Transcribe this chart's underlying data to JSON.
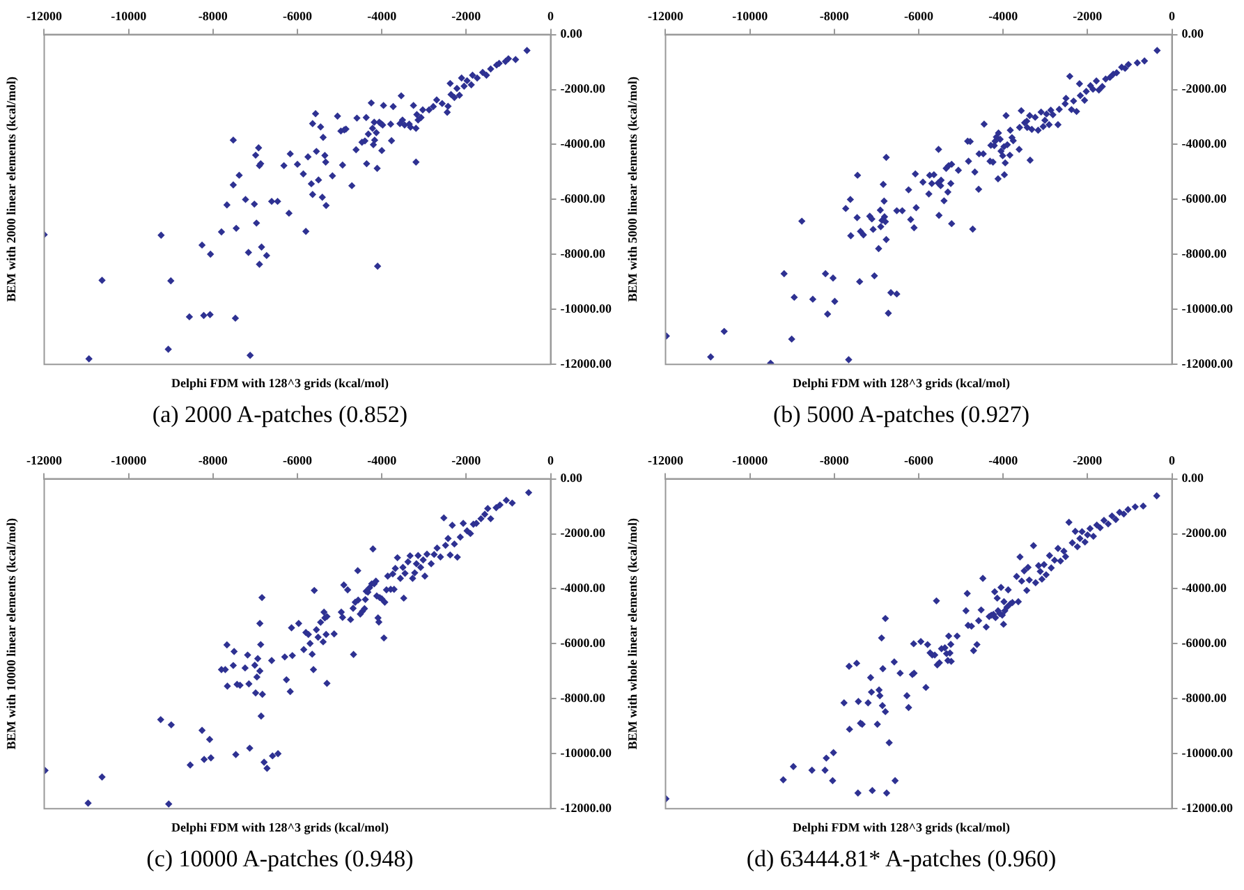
{
  "chart_data": [
    {
      "type": "scatter",
      "title": "(a) 2000 A-patches (0.852)",
      "xlabel": "Delphi FDM with 128^3 grids (kcal/mol)",
      "ylabel": "BEM with 2000 linear elements (kcal/mol)",
      "color": "#2e3192",
      "marker": "diamond",
      "xlim": [
        -12000,
        0
      ],
      "ylim": [
        -12000,
        0
      ],
      "xticks": [
        -12000,
        -10000,
        -8000,
        -6000,
        -4000,
        -2000,
        0
      ],
      "yticks": [
        {
          "value": 0,
          "label": "0.00"
        },
        {
          "value": -2000,
          "label": "-2000.00"
        },
        {
          "value": -4000,
          "label": "-4000.00"
        },
        {
          "value": -6000,
          "label": "-6000.00"
        },
        {
          "value": -8000,
          "label": "-8000.00"
        },
        {
          "value": -10000,
          "label": "-10000.00"
        },
        {
          "value": -12000,
          "label": "-12000.00"
        }
      ],
      "x": [
        -12000,
        -10940,
        -10630,
        -9230,
        -9060,
        -9000,
        -8560,
        -8260,
        -8220,
        -8060,
        -8070,
        -7800,
        -7670,
        -7520,
        -7520,
        -7470,
        -7450,
        -7380,
        -7230,
        -7160,
        -7120,
        -7020,
        -6990,
        -6970,
        -6920,
        -6900,
        -6900,
        -6870,
        -6850,
        -6730,
        -6610,
        -6470,
        -6320,
        -6200,
        -6170,
        -6000,
        -5860,
        -5800,
        -5750,
        -5670,
        -5640,
        -5640,
        -5570,
        -5550,
        -5500,
        -5450,
        -5410,
        -5390,
        -5350,
        -5330,
        -5320,
        -5170,
        -5050,
        -4970,
        -4930,
        -4890,
        -4850,
        -4710,
        -4590,
        -4610,
        -4470,
        -4400,
        -4370,
        -4360,
        -4320,
        -4250,
        -4220,
        -4200,
        -4180,
        -4170,
        -4130,
        -4110,
        -4100,
        -4060,
        -4020,
        -4000,
        -3980,
        -3960,
        -3790,
        -3770,
        -3730,
        -3570,
        -3540,
        -3510,
        -3460,
        -3350,
        -3320,
        -3250,
        -3190,
        -3190,
        -3170,
        -3140,
        -3070,
        -3030,
        -2880,
        -2780,
        -2700,
        -2570,
        -2450,
        -2430,
        -2380,
        -2360,
        -2280,
        -2220,
        -2160,
        -2110,
        -2050,
        -1980,
        -1880,
        -1850,
        -1740,
        -1610,
        -1520,
        -1420,
        -1280,
        -1220,
        -1070,
        -1000,
        -830,
        -560
      ],
      "values": [
        -7280,
        -11800,
        -8940,
        -7300,
        -11450,
        -8960,
        -10270,
        -7660,
        -10220,
        -7990,
        -10190,
        -7180,
        -6200,
        -3840,
        -5470,
        -10320,
        -7050,
        -5120,
        -6000,
        -7930,
        -11670,
        -6170,
        -4390,
        -6860,
        -4120,
        -8360,
        -4770,
        -4700,
        -7730,
        -8040,
        -6070,
        -6070,
        -4770,
        -6500,
        -4340,
        -4720,
        -5070,
        -7160,
        -4450,
        -5430,
        -3240,
        -5820,
        -2880,
        -4250,
        -5290,
        -3360,
        -5920,
        -3740,
        -4400,
        -4640,
        -6220,
        -5140,
        -2970,
        -3510,
        -4750,
        -3470,
        -3440,
        -5500,
        -3040,
        -4190,
        -3920,
        -3870,
        -3020,
        -4700,
        -3620,
        -2490,
        -3410,
        -4010,
        -3190,
        -3840,
        -3570,
        -4870,
        -8430,
        -3190,
        -3240,
        -4220,
        -3290,
        -2580,
        -3260,
        -3860,
        -2620,
        -3240,
        -2230,
        -3110,
        -3290,
        -3260,
        -3370,
        -2580,
        -4640,
        -3410,
        -2910,
        -3110,
        -3020,
        -2740,
        -2740,
        -2620,
        -2380,
        -2510,
        -2830,
        -2610,
        -1780,
        -2180,
        -2290,
        -1960,
        -2210,
        -1580,
        -1880,
        -1680,
        -1830,
        -1480,
        -1580,
        -1380,
        -1480,
        -1250,
        -1110,
        -1050,
        -980,
        -880,
        -910,
        -580
      ]
    },
    {
      "type": "scatter",
      "title": "(b) 5000 A-patches (0.927)",
      "xlabel": "Delphi FDM with 128^3 grids (kcal/mol)",
      "ylabel": "BEM with 5000 linear elements (kcal/mol)",
      "color": "#2e3192",
      "marker": "diamond",
      "xlim": [
        -12000,
        0
      ],
      "ylim": [
        -12000,
        0
      ],
      "xticks": [
        -12000,
        -10000,
        -8000,
        -6000,
        -4000,
        -2000,
        0
      ],
      "yticks": [
        {
          "value": 0,
          "label": "0.00"
        },
        {
          "value": -2000,
          "label": "-2000.00"
        },
        {
          "value": -4000,
          "label": "-4000.00"
        },
        {
          "value": -6000,
          "label": "-6000.00"
        },
        {
          "value": -8000,
          "label": "-8000.00"
        },
        {
          "value": -10000,
          "label": "-10000.00"
        },
        {
          "value": -12000,
          "label": "-12000.00"
        }
      ],
      "x": [
        -11980,
        -10930,
        -10610,
        -9510,
        -9190,
        -9010,
        -8950,
        -8770,
        -8510,
        -8210,
        -8160,
        -8030,
        -7990,
        -7730,
        -7660,
        -7620,
        -7610,
        -7460,
        -7450,
        -7400,
        -7380,
        -7310,
        -7160,
        -7110,
        -7080,
        -7050,
        -6950,
        -6910,
        -6900,
        -6870,
        -6840,
        -6820,
        -6810,
        -6790,
        -6770,
        -6770,
        -6720,
        -6660,
        -6520,
        -6520,
        -6390,
        -6240,
        -6190,
        -6110,
        -6080,
        -6060,
        -5900,
        -5760,
        -5740,
        -5690,
        -5640,
        -5540,
        -5530,
        -5520,
        -5480,
        -5470,
        -5400,
        -5350,
        -5310,
        -5290,
        -5240,
        -5220,
        -5220,
        -5060,
        -4840,
        -4820,
        -4780,
        -4720,
        -4670,
        -4580,
        -4570,
        -4470,
        -4450,
        -4310,
        -4290,
        -4240,
        -4210,
        -4190,
        -4160,
        -4120,
        -4110,
        -4070,
        -4050,
        -4010,
        -3980,
        -3970,
        -3950,
        -3930,
        -3900,
        -3840,
        -3830,
        -3790,
        -3760,
        -3620,
        -3610,
        -3570,
        -3490,
        -3440,
        -3430,
        -3370,
        -3360,
        -3320,
        -3240,
        -3170,
        -3100,
        -3050,
        -3010,
        -2970,
        -2910,
        -2870,
        -2820,
        -2700,
        -2670,
        -2530,
        -2510,
        -2420,
        -2380,
        -2330,
        -2260,
        -2190,
        -2170,
        -2070,
        -2030,
        -1930,
        -1870,
        -1790,
        -1730,
        -1650,
        -1570,
        -1470,
        -1390,
        -1310,
        -1190,
        -1110,
        -1030,
        -820,
        -650,
        -350
      ],
      "values": [
        -10970,
        -11730,
        -10800,
        -11960,
        -8700,
        -11080,
        -9560,
        -6790,
        -9630,
        -8700,
        -10170,
        -8860,
        -9710,
        -6330,
        -11830,
        -6000,
        -7320,
        -6660,
        -5120,
        -8990,
        -7160,
        -7290,
        -6610,
        -6710,
        -7090,
        -8780,
        -7790,
        -6390,
        -6990,
        -6760,
        -5450,
        -6060,
        -6630,
        -6810,
        -7460,
        -4470,
        -10140,
        -9390,
        -9440,
        -6410,
        -6410,
        -5650,
        -6730,
        -7030,
        -5070,
        -6300,
        -5370,
        -5800,
        -5120,
        -5420,
        -5100,
        -5400,
        -4180,
        -6580,
        -5500,
        -5300,
        -6050,
        -4870,
        -5730,
        -4770,
        -5420,
        -4720,
        -6880,
        -4940,
        -3880,
        -4610,
        -3890,
        -7080,
        -5000,
        -5630,
        -4340,
        -4340,
        -3260,
        -4610,
        -4030,
        -4640,
        -4040,
        -3880,
        -3730,
        -5250,
        -3580,
        -3810,
        -4240,
        -4410,
        -4080,
        -5100,
        -4670,
        -2950,
        -4010,
        -4390,
        -3480,
        -3750,
        -3860,
        -4180,
        -3380,
        -2770,
        -3210,
        -3150,
        -3380,
        -2950,
        -4570,
        -3450,
        -3010,
        -3480,
        -2820,
        -3350,
        -3120,
        -2890,
        -3280,
        -2750,
        -2920,
        -3280,
        -2720,
        -2520,
        -2320,
        -1520,
        -2730,
        -2420,
        -2800,
        -1790,
        -2220,
        -2390,
        -2070,
        -1860,
        -1990,
        -1690,
        -2020,
        -1890,
        -1620,
        -1560,
        -1440,
        -1390,
        -1190,
        -1230,
        -1090,
        -1030,
        -960,
        -580
      ]
    },
    {
      "type": "scatter",
      "title": "(c) 10000 A-patches (0.948)",
      "xlabel": "Delphi FDM with 128^3 grids (kcal/mol)",
      "ylabel": "BEM with 10000 linear elements (kcal/mol)",
      "color": "#2e3192",
      "marker": "diamond",
      "xlim": [
        -12000,
        0
      ],
      "ylim": [
        -12000,
        0
      ],
      "xticks": [
        -12000,
        -10000,
        -8000,
        -6000,
        -4000,
        -2000,
        0
      ],
      "yticks": [
        {
          "value": 0,
          "label": "0.00"
        },
        {
          "value": -2000,
          "label": "-2000.00"
        },
        {
          "value": -4000,
          "label": "-4000.00"
        },
        {
          "value": -6000,
          "label": "-6000.00"
        },
        {
          "value": -8000,
          "label": "-8000.00"
        },
        {
          "value": -10000,
          "label": "-10000.00"
        },
        {
          "value": -12000,
          "label": "-12000.00"
        }
      ],
      "x": [
        -11980,
        -10960,
        -10630,
        -9240,
        -9050,
        -8990,
        -8540,
        -8260,
        -8210,
        -8080,
        -8050,
        -7800,
        -7710,
        -7670,
        -7660,
        -7520,
        -7500,
        -7460,
        -7430,
        -7360,
        -7240,
        -7180,
        -7150,
        -7130,
        -7010,
        -6990,
        -6960,
        -6940,
        -6890,
        -6890,
        -6870,
        -6860,
        -6840,
        -6830,
        -6790,
        -6720,
        -6610,
        -6590,
        -6460,
        -6300,
        -6260,
        -6170,
        -6140,
        -6120,
        -5970,
        -5850,
        -5800,
        -5740,
        -5700,
        -5650,
        -5620,
        -5600,
        -5550,
        -5510,
        -5450,
        -5390,
        -5370,
        -5350,
        -5320,
        -5300,
        -5300,
        -5130,
        -4960,
        -4930,
        -4900,
        -4810,
        -4740,
        -4680,
        -4670,
        -4630,
        -4570,
        -4560,
        -4510,
        -4460,
        -4410,
        -4390,
        -4370,
        -4330,
        -4290,
        -4240,
        -4210,
        -4180,
        -4140,
        -4120,
        -4090,
        -4070,
        -4050,
        -4000,
        -3950,
        -3930,
        -3890,
        -3860,
        -3790,
        -3740,
        -3710,
        -3680,
        -3630,
        -3560,
        -3500,
        -3480,
        -3450,
        -3380,
        -3330,
        -3270,
        -3220,
        -3180,
        -3140,
        -3080,
        -3020,
        -2980,
        -2930,
        -2830,
        -2760,
        -2690,
        -2610,
        -2530,
        -2490,
        -2430,
        -2380,
        -2330,
        -2280,
        -2210,
        -2140,
        -2070,
        -1980,
        -1900,
        -1830,
        -1760,
        -1650,
        -1560,
        -1490,
        -1420,
        -1290,
        -1200,
        -1050,
        -910,
        -520
      ],
      "values": [
        -10610,
        -11800,
        -10850,
        -8760,
        -11830,
        -8950,
        -10410,
        -9150,
        -10210,
        -9480,
        -10150,
        -6940,
        -6940,
        -6040,
        -7540,
        -6790,
        -6280,
        -10030,
        -7480,
        -7510,
        -6880,
        -6410,
        -7460,
        -9800,
        -6780,
        -7790,
        -7210,
        -6540,
        -6990,
        -5260,
        -6030,
        -8630,
        -4320,
        -7840,
        -10310,
        -10530,
        -6610,
        -10080,
        -10000,
        -6480,
        -7310,
        -7740,
        -5420,
        -6430,
        -5260,
        -6210,
        -5590,
        -5660,
        -5990,
        -6380,
        -6940,
        -4060,
        -5490,
        -5760,
        -5220,
        -5930,
        -4850,
        -5060,
        -5660,
        -7440,
        -5010,
        -5640,
        -4850,
        -5040,
        -3860,
        -4040,
        -5120,
        -4710,
        -6390,
        -4490,
        -3340,
        -4410,
        -4920,
        -4820,
        -4720,
        -4390,
        -4090,
        -4120,
        -3960,
        -3820,
        -2550,
        -3820,
        -3720,
        -4260,
        -5060,
        -5210,
        -4320,
        -4370,
        -5790,
        -4490,
        -4040,
        -3540,
        -4020,
        -3460,
        -4020,
        -3260,
        -2870,
        -3620,
        -3220,
        -4340,
        -3440,
        -3020,
        -2800,
        -3620,
        -3420,
        -3090,
        -2790,
        -3220,
        -2950,
        -3540,
        -2740,
        -3090,
        -2750,
        -2520,
        -2840,
        -1420,
        -2420,
        -2170,
        -2770,
        -1690,
        -2370,
        -2850,
        -2120,
        -1620,
        -1890,
        -1990,
        -1650,
        -1620,
        -1450,
        -1290,
        -1080,
        -1450,
        -1050,
        -950,
        -780,
        -880,
        -500
      ]
    },
    {
      "type": "scatter",
      "title": "(d) 63444.81* A-patches (0.960)",
      "xlabel": "Delphi FDM with 128^3 grids (kcal/mol)",
      "ylabel": "BEM with whole linear elements (kcal/mol)",
      "color": "#2e3192",
      "marker": "diamond",
      "xlim": [
        -12000,
        0
      ],
      "ylim": [
        -12000,
        0
      ],
      "xticks": [
        -12000,
        -10000,
        -8000,
        -6000,
        -4000,
        -2000,
        0
      ],
      "yticks": [
        {
          "value": 0,
          "label": "0.00"
        },
        {
          "value": -2000,
          "label": "-2000.00"
        },
        {
          "value": -4000,
          "label": "-4000.00"
        },
        {
          "value": -6000,
          "label": "-6000.00"
        },
        {
          "value": -8000,
          "label": "-8000.00"
        },
        {
          "value": -10000,
          "label": "-10000.00"
        },
        {
          "value": -12000,
          "label": "-12000.00"
        }
      ],
      "x": [
        -11990,
        -9210,
        -8970,
        -8530,
        -8220,
        -8190,
        -8040,
        -8020,
        -7770,
        -7650,
        -7640,
        -7470,
        -7440,
        -7430,
        -7380,
        -7340,
        -7200,
        -7140,
        -7120,
        -7100,
        -6980,
        -6940,
        -6920,
        -6880,
        -6860,
        -6850,
        -6790,
        -6790,
        -6760,
        -6700,
        -6580,
        -6560,
        -6440,
        -6280,
        -6240,
        -6150,
        -6120,
        -6110,
        -5950,
        -5830,
        -5790,
        -5730,
        -5680,
        -5620,
        -5580,
        -5560,
        -5510,
        -5460,
        -5380,
        -5340,
        -5310,
        -5290,
        -5260,
        -5240,
        -5230,
        -5090,
        -4880,
        -4850,
        -4830,
        -4750,
        -4700,
        -4620,
        -4580,
        -4520,
        -4480,
        -4400,
        -4330,
        -4280,
        -4230,
        -4200,
        -4180,
        -4140,
        -4120,
        -4080,
        -4050,
        -4020,
        -3990,
        -3980,
        -3960,
        -3910,
        -3880,
        -3830,
        -3780,
        -3680,
        -3640,
        -3600,
        -3560,
        -3500,
        -3440,
        -3410,
        -3380,
        -3280,
        -3230,
        -3160,
        -3120,
        -3080,
        -3030,
        -2980,
        -2900,
        -2860,
        -2780,
        -2700,
        -2640,
        -2560,
        -2520,
        -2440,
        -2360,
        -2290,
        -2240,
        -2180,
        -2130,
        -2060,
        -2000,
        -1940,
        -1860,
        -1780,
        -1700,
        -1610,
        -1510,
        -1420,
        -1330,
        -1240,
        -1140,
        -1040,
        -870,
        -680,
        -360
      ],
      "values": [
        -11640,
        -10950,
        -10470,
        -10600,
        -10600,
        -10160,
        -10980,
        -9960,
        -8150,
        -6820,
        -9110,
        -6710,
        -11430,
        -8100,
        -8890,
        -8930,
        -8150,
        -7230,
        -7760,
        -11340,
        -8930,
        -7680,
        -7890,
        -5790,
        -8250,
        -6910,
        -8470,
        -5080,
        -11430,
        -9600,
        -6660,
        -10980,
        -7070,
        -7890,
        -8320,
        -7120,
        -6000,
        -7070,
        -5920,
        -7590,
        -6030,
        -6330,
        -6410,
        -6410,
        -4440,
        -6770,
        -6690,
        -6180,
        -6150,
        -6360,
        -6610,
        -5720,
        -6340,
        -6020,
        -6640,
        -5720,
        -4800,
        -4170,
        -5330,
        -5360,
        -6250,
        -6030,
        -5160,
        -4770,
        -3620,
        -5390,
        -5010,
        -4960,
        -4930,
        -4110,
        -5050,
        -4340,
        -4800,
        -4900,
        -3950,
        -4960,
        -5290,
        -4470,
        -4800,
        -4670,
        -4040,
        -4550,
        -4500,
        -3550,
        -4470,
        -2840,
        -3720,
        -3350,
        -4060,
        -3220,
        -3680,
        -2430,
        -3780,
        -3160,
        -3370,
        -3650,
        -3120,
        -3490,
        -2790,
        -3240,
        -2960,
        -2530,
        -2990,
        -2630,
        -2830,
        -1580,
        -2330,
        -1910,
        -2470,
        -2170,
        -1920,
        -2300,
        -2040,
        -1810,
        -2090,
        -1680,
        -1780,
        -1510,
        -1640,
        -1350,
        -1480,
        -1220,
        -1280,
        -1120,
        -1020,
        -990,
        -620
      ]
    }
  ]
}
